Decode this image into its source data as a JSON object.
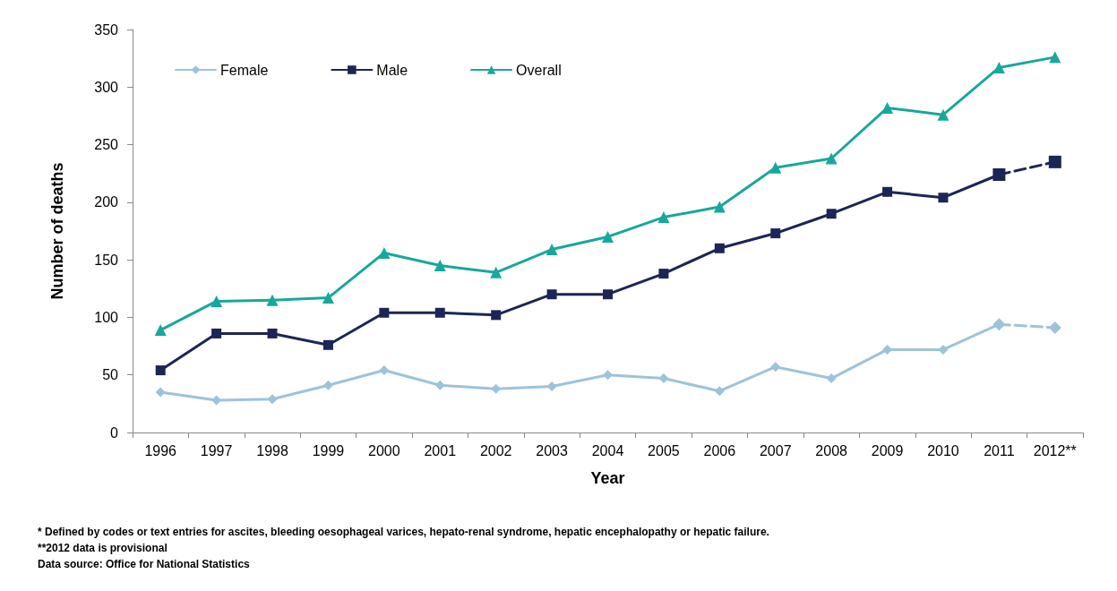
{
  "chart_data": {
    "type": "line",
    "xlabel": "Year",
    "ylabel": "Number of deaths",
    "categories": [
      "1996",
      "1997",
      "1998",
      "1999",
      "2000",
      "2001",
      "2002",
      "2003",
      "2004",
      "2005",
      "2006",
      "2007",
      "2008",
      "2009",
      "2010",
      "2011",
      "2012**"
    ],
    "series": [
      {
        "name": "Female",
        "color": "#9dc3da",
        "marker": "diamond",
        "line_style": "solid",
        "values": [
          35,
          28,
          29,
          41,
          54,
          41,
          38,
          40,
          50,
          47,
          36,
          57,
          47,
          72,
          72,
          94,
          null
        ]
      },
      {
        "name": "Male",
        "color": "#1c2557",
        "marker": "square",
        "line_style": "solid",
        "values": [
          54,
          86,
          86,
          76,
          104,
          104,
          102,
          120,
          120,
          138,
          160,
          173,
          190,
          209,
          204,
          224,
          null
        ]
      },
      {
        "name": "Overall",
        "color": "#17a89c",
        "marker": "triangle",
        "line_style": "solid",
        "values": [
          89,
          114,
          115,
          117,
          156,
          145,
          139,
          159,
          170,
          187,
          196,
          230,
          238,
          282,
          276,
          317,
          326
        ]
      },
      {
        "color": "#9dc3da",
        "marker": "diamond",
        "line_style": "dashed",
        "values": [
          null,
          null,
          null,
          null,
          null,
          null,
          null,
          null,
          null,
          null,
          null,
          null,
          null,
          null,
          null,
          94,
          91
        ]
      },
      {
        "color": "#1c2557",
        "marker": "square",
        "line_style": "dashed",
        "values": [
          null,
          null,
          null,
          null,
          null,
          null,
          null,
          null,
          null,
          null,
          null,
          null,
          null,
          null,
          null,
          224,
          235
        ]
      }
    ],
    "ylim": [
      0,
      350
    ],
    "yticks": [
      0,
      50,
      100,
      150,
      200,
      250,
      300,
      350
    ],
    "grid": false,
    "legend": "top left",
    "annotations": [
      "* Defined by codes or text entries for ascites, bleeding oesophageal varices, hepato-renal syndrome, hepatic encephalopathy or hepatic failure.",
      "**2012 data is provisional",
      "Data source: Office for National Statistics"
    ]
  }
}
